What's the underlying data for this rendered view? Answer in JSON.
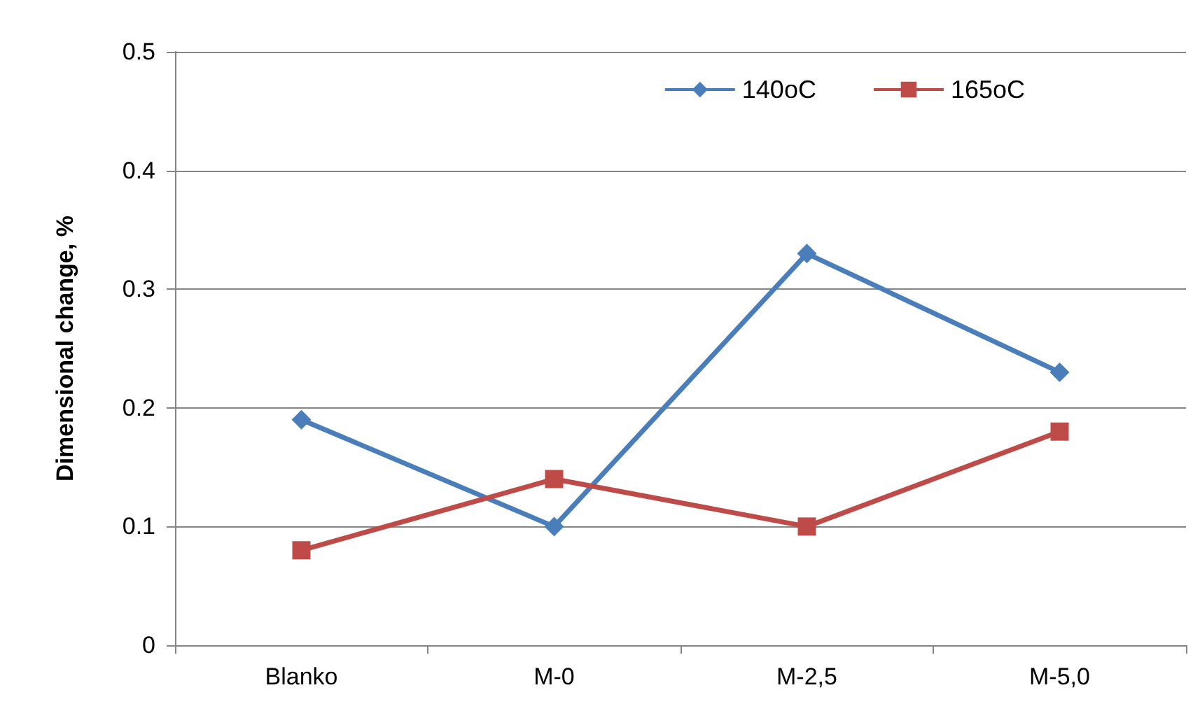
{
  "chart_data": {
    "type": "line",
    "ylabel": "Dimensional change, %",
    "categories": [
      "Blanko",
      "M-0",
      "M-2,5",
      "M-5,0"
    ],
    "series": [
      {
        "name": "140oC",
        "color": "#4a7ebb",
        "marker": "diamond",
        "values": [
          0.19,
          0.1,
          0.33,
          0.23
        ]
      },
      {
        "name": "165oC",
        "color": "#be4b48",
        "marker": "square",
        "values": [
          0.08,
          0.14,
          0.1,
          0.18
        ]
      }
    ],
    "ylim": [
      0,
      0.5
    ],
    "yticks": [
      0,
      0.1,
      0.2,
      0.3,
      0.4,
      0.5
    ],
    "grid": "y",
    "legend": "top right"
  }
}
